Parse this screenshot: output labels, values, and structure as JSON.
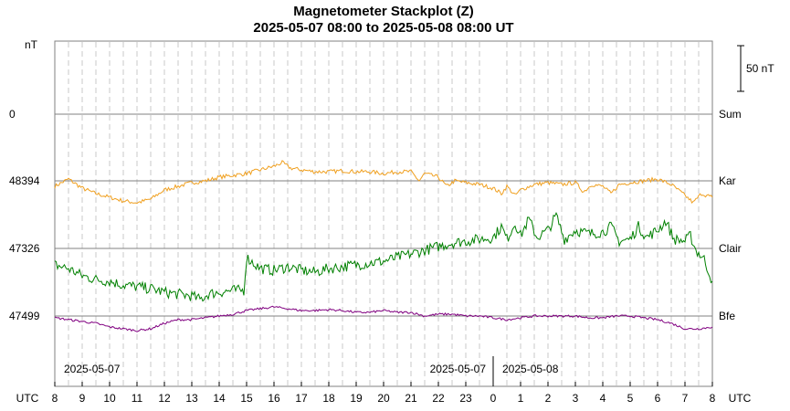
{
  "chart_data": {
    "type": "line",
    "title": "Magnetometer Stackplot (Z)",
    "subtitle": "2025-05-07 08:00 to 2025-05-08 08:00 UT",
    "y_unit_label": "nT",
    "scale_bar_label": "50 nT",
    "scale_bar_value": 50,
    "x_axis_label": "UTC",
    "x_axis_label_right": "UTC",
    "x_range_hours": [
      8,
      32
    ],
    "x_ticks": [
      "8",
      "9",
      "10",
      "11",
      "12",
      "13",
      "14",
      "15",
      "16",
      "17",
      "18",
      "19",
      "20",
      "21",
      "22",
      "23",
      "0",
      "1",
      "2",
      "3",
      "4",
      "5",
      "6",
      "7",
      "8"
    ],
    "date_labels": {
      "left_start": "2025-05-07",
      "before_midnight": "2025-05-07",
      "after_midnight": "2025-05-08"
    },
    "grid": true,
    "series": [
      {
        "name": "Sum",
        "baseline_label": "0",
        "color": "#000000",
        "points": []
      },
      {
        "name": "Kar",
        "baseline_label": "48394",
        "color": "#f0a020",
        "points": [
          [
            8,
            -6
          ],
          [
            8.5,
            2
          ],
          [
            9,
            -8
          ],
          [
            9.5,
            -14
          ],
          [
            10,
            -18
          ],
          [
            10.5,
            -22
          ],
          [
            11,
            -24
          ],
          [
            11.5,
            -20
          ],
          [
            12,
            -10
          ],
          [
            12.5,
            -6
          ],
          [
            13,
            -2
          ],
          [
            13.5,
            0
          ],
          [
            14,
            4
          ],
          [
            14.5,
            6
          ],
          [
            15,
            8
          ],
          [
            15.5,
            12
          ],
          [
            16,
            16
          ],
          [
            16.3,
            20
          ],
          [
            16.6,
            14
          ],
          [
            17,
            12
          ],
          [
            17.5,
            10
          ],
          [
            18,
            10
          ],
          [
            18.5,
            11
          ],
          [
            19,
            10
          ],
          [
            19.5,
            10
          ],
          [
            20,
            8
          ],
          [
            20.5,
            10
          ],
          [
            21,
            10
          ],
          [
            21.3,
            0
          ],
          [
            21.5,
            8
          ],
          [
            22,
            4
          ],
          [
            22.3,
            -6
          ],
          [
            22.6,
            0
          ],
          [
            23,
            -2
          ],
          [
            23.5,
            -4
          ],
          [
            24,
            -8
          ],
          [
            24.3,
            -14
          ],
          [
            24.5,
            -6
          ],
          [
            24.8,
            -16
          ],
          [
            25,
            -10
          ],
          [
            25.5,
            -4
          ],
          [
            26,
            -2
          ],
          [
            26.5,
            -4
          ],
          [
            27,
            -2
          ],
          [
            27.3,
            -12
          ],
          [
            27.6,
            -4
          ],
          [
            28,
            -6
          ],
          [
            28.3,
            -14
          ],
          [
            28.6,
            -4
          ],
          [
            29,
            -2
          ],
          [
            29.5,
            0
          ],
          [
            30,
            2
          ],
          [
            30.5,
            -4
          ],
          [
            31,
            -16
          ],
          [
            31.3,
            -24
          ],
          [
            31.6,
            -14
          ],
          [
            32,
            -18
          ]
        ]
      },
      {
        "name": "Clair",
        "baseline_label": "47326",
        "color": "#008000",
        "points": [
          [
            8,
            -18
          ],
          [
            8.5,
            -22
          ],
          [
            9,
            -30
          ],
          [
            9.5,
            -34
          ],
          [
            10,
            -36
          ],
          [
            10.5,
            -40
          ],
          [
            11,
            -42
          ],
          [
            11.5,
            -44
          ],
          [
            12,
            -48
          ],
          [
            12.5,
            -50
          ],
          [
            13,
            -52
          ],
          [
            13.3,
            -56
          ],
          [
            13.6,
            -50
          ],
          [
            14,
            -48
          ],
          [
            14.5,
            -46
          ],
          [
            14.9,
            -46
          ],
          [
            15,
            -10
          ],
          [
            15.5,
            -22
          ],
          [
            16,
            -24
          ],
          [
            16.5,
            -20
          ],
          [
            17,
            -24
          ],
          [
            17.5,
            -26
          ],
          [
            18,
            -22
          ],
          [
            18.5,
            -20
          ],
          [
            19,
            -18
          ],
          [
            19.5,
            -16
          ],
          [
            20,
            -14
          ],
          [
            20.5,
            -10
          ],
          [
            21,
            -6
          ],
          [
            21.5,
            -2
          ],
          [
            22,
            2
          ],
          [
            22.5,
            6
          ],
          [
            23,
            8
          ],
          [
            23.5,
            10
          ],
          [
            24,
            12
          ],
          [
            24.3,
            24
          ],
          [
            24.5,
            10
          ],
          [
            24.8,
            28
          ],
          [
            25,
            14
          ],
          [
            25.3,
            32
          ],
          [
            25.6,
            12
          ],
          [
            26,
            20
          ],
          [
            26.3,
            36
          ],
          [
            26.6,
            10
          ],
          [
            27,
            20
          ],
          [
            27.5,
            16
          ],
          [
            28,
            18
          ],
          [
            28.3,
            24
          ],
          [
            28.6,
            8
          ],
          [
            29,
            10
          ],
          [
            29.3,
            24
          ],
          [
            29.6,
            12
          ],
          [
            30,
            20
          ],
          [
            30.3,
            30
          ],
          [
            30.6,
            10
          ],
          [
            31,
            8
          ],
          [
            31.2,
            14
          ],
          [
            31.4,
            -2
          ],
          [
            31.7,
            -12
          ],
          [
            32,
            -36
          ]
        ]
      },
      {
        "name": "Bfe",
        "baseline_label": "47499",
        "color": "#800080",
        "points": [
          [
            8,
            -2
          ],
          [
            8.5,
            -4
          ],
          [
            9,
            -6
          ],
          [
            9.5,
            -8
          ],
          [
            10,
            -12
          ],
          [
            10.5,
            -14
          ],
          [
            11,
            -16
          ],
          [
            11.5,
            -14
          ],
          [
            12,
            -8
          ],
          [
            12.5,
            -4
          ],
          [
            13,
            -4
          ],
          [
            13.5,
            -2
          ],
          [
            14,
            0
          ],
          [
            14.5,
            2
          ],
          [
            15,
            6
          ],
          [
            15.5,
            8
          ],
          [
            16,
            10
          ],
          [
            16.5,
            8
          ],
          [
            17,
            6
          ],
          [
            17.5,
            6
          ],
          [
            18,
            7
          ],
          [
            18.5,
            6
          ],
          [
            19,
            4
          ],
          [
            19.5,
            4
          ],
          [
            20,
            6
          ],
          [
            20.5,
            4
          ],
          [
            21,
            4
          ],
          [
            21.5,
            0
          ],
          [
            22,
            2
          ],
          [
            22.5,
            2
          ],
          [
            23,
            0
          ],
          [
            23.5,
            0
          ],
          [
            24,
            -2
          ],
          [
            24.5,
            -4
          ],
          [
            25,
            -2
          ],
          [
            25.5,
            0
          ],
          [
            26,
            0
          ],
          [
            26.5,
            0
          ],
          [
            27,
            0
          ],
          [
            27.5,
            -2
          ],
          [
            28,
            -2
          ],
          [
            28.5,
            0
          ],
          [
            29,
            0
          ],
          [
            29.5,
            -2
          ],
          [
            30,
            -4
          ],
          [
            30.5,
            -8
          ],
          [
            31,
            -14
          ],
          [
            31.5,
            -14
          ],
          [
            32,
            -12
          ]
        ]
      }
    ]
  }
}
